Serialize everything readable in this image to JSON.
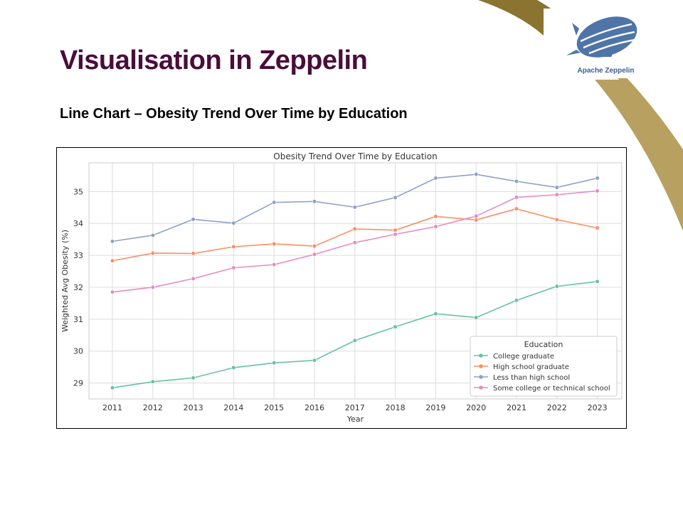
{
  "slide": {
    "title": "Visualisation in Zeppelin",
    "subtitle": "Line Chart – Obesity Trend Over Time by Education",
    "logo_text": "Apache Zeppelin",
    "colors": {
      "title": "#4a0d3a",
      "swoosh_dark": "#8a7430",
      "swoosh_light": "#b8a060",
      "logo_blue": "#4f74a8"
    },
    "logo_icon": "zeppelin-airship-icon"
  },
  "chart_data": {
    "type": "line",
    "title": "Obesity Trend Over Time by Education",
    "xlabel": "Year",
    "ylabel": "Weighted Avg Obesity (%)",
    "x": [
      2011,
      2012,
      2013,
      2014,
      2015,
      2016,
      2017,
      2018,
      2019,
      2020,
      2021,
      2022,
      2023
    ],
    "ylim": [
      28.5,
      35.9
    ],
    "yticks": [
      29,
      30,
      31,
      32,
      33,
      34,
      35
    ],
    "grid": true,
    "legend": {
      "title": "Education",
      "position": "lower-right"
    },
    "series": [
      {
        "name": "College graduate",
        "color": "#66c2a5",
        "values": [
          28.85,
          29.04,
          29.16,
          29.48,
          29.63,
          29.71,
          30.33,
          30.76,
          31.17,
          31.05,
          31.59,
          32.03,
          32.18
        ]
      },
      {
        "name": "High school graduate",
        "color": "#fc8d62",
        "values": [
          32.83,
          33.07,
          33.06,
          33.27,
          33.36,
          33.29,
          33.83,
          33.79,
          34.22,
          34.11,
          34.46,
          34.12,
          33.86
        ]
      },
      {
        "name": "Less than high school",
        "color": "#8da0cb",
        "values": [
          33.44,
          33.63,
          34.13,
          34.01,
          34.66,
          34.69,
          34.51,
          34.81,
          35.42,
          35.54,
          35.32,
          35.13,
          35.42
        ]
      },
      {
        "name": "Some college or technical school",
        "color": "#e78ac3",
        "values": [
          31.85,
          32.0,
          32.27,
          32.61,
          32.71,
          33.03,
          33.4,
          33.66,
          33.9,
          34.23,
          34.82,
          34.9,
          35.02
        ]
      }
    ]
  }
}
